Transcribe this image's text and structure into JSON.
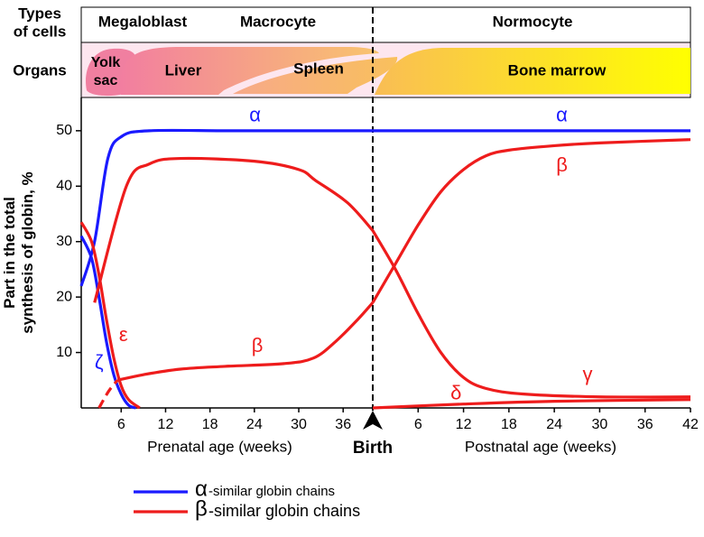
{
  "header": {
    "cells_label": [
      "Types",
      "of cells"
    ],
    "organs_label": "Organs",
    "cells": [
      "Megaloblast",
      "Macrocyte",
      "Normocyte"
    ],
    "yolk_sac": [
      "Yolk",
      "sac"
    ],
    "organs": [
      "Liver",
      "Spleen",
      "Bone marrow"
    ]
  },
  "birth_label": "Birth",
  "legend": [
    {
      "symbol": "α",
      "text": "-similar globin chains",
      "color": "#1a1aff"
    },
    {
      "symbol": "β",
      "text": "-similar globin chains",
      "color": "#ee1c1c"
    }
  ],
  "chart_data": [
    {
      "type": "line",
      "x_label": "Prenatal age (weeks)",
      "y_label": [
        "Part in the total",
        "synthesis of globin, %"
      ],
      "xlim": [
        0.6,
        40
      ],
      "xticks": [
        6,
        12,
        18,
        24,
        30,
        36
      ],
      "ylim": [
        0,
        56
      ],
      "yticks": [
        10,
        20,
        30,
        40,
        50
      ],
      "series": [
        {
          "name": "ζ",
          "color": "#1a1aff",
          "x": [
            0.6,
            2,
            3,
            4,
            5,
            6,
            7,
            8
          ],
          "values": [
            31,
            27,
            20,
            12,
            6,
            2.5,
            0.5,
            0
          ],
          "label_x": 3,
          "label_y": 8
        },
        {
          "name": "α",
          "color": "#1a1aff",
          "x": [
            0.6,
            2.4,
            4.2,
            6.1,
            9.8,
            20,
            30,
            40
          ],
          "values": [
            22,
            30,
            45,
            49,
            50,
            50,
            50,
            50
          ],
          "label_x": 24.1,
          "label_y": 52.6
        },
        {
          "name": "ε",
          "color": "#ee1c1c",
          "x": [
            0.6,
            2,
            3,
            4,
            5,
            6,
            7,
            8.5
          ],
          "values": [
            33.5,
            30,
            24,
            16,
            9,
            4,
            1.5,
            0
          ],
          "label_x": 6.3,
          "label_y": 13
        },
        {
          "name": "γ",
          "color": "#ee1c1c",
          "x": [
            2.4,
            6.7,
            9.8,
            14,
            24,
            30,
            32.3,
            36.6,
            40
          ],
          "values": [
            19,
            40,
            44,
            45,
            44.5,
            43,
            41,
            37,
            32
          ]
        },
        {
          "name": "β",
          "color": "#ee1c1c",
          "x": [
            5.5,
            9,
            14,
            20,
            28,
            32,
            35,
            38,
            40
          ],
          "values": [
            5,
            6,
            7,
            7.5,
            8,
            9,
            12,
            16,
            19
          ],
          "label_x": 24.4,
          "label_y": 11,
          "lead_in": {
            "x": [
              3,
              4.3,
              5.5
            ],
            "values": [
              0,
              3,
              5
            ]
          }
        }
      ]
    },
    {
      "type": "line",
      "x_label": "Postnatal age (weeks)",
      "xlim": [
        0,
        42
      ],
      "xticks": [
        6,
        12,
        18,
        24,
        30,
        36,
        42
      ],
      "ylim": [
        0,
        56
      ],
      "series": [
        {
          "name": "α",
          "color": "#1a1aff",
          "x": [
            0,
            42
          ],
          "values": [
            50,
            50
          ],
          "label_x": 25,
          "label_y": 52.6
        },
        {
          "name": "β",
          "color": "#ee1c1c",
          "x": [
            0,
            3,
            6,
            9,
            12,
            15,
            18,
            24,
            30,
            42
          ],
          "values": [
            19,
            26,
            33,
            39,
            43,
            45.5,
            46.5,
            47.3,
            47.8,
            48.4
          ],
          "label_x": 25,
          "label_y": 43.6
        },
        {
          "name": "γ",
          "color": "#ee1c1c",
          "x": [
            0,
            3,
            6,
            9,
            12,
            15,
            20,
            30,
            42
          ],
          "values": [
            32,
            25,
            17,
            10,
            5.5,
            3.5,
            2.5,
            2,
            2
          ],
          "label_x": 28.4,
          "label_y": 5.8
        },
        {
          "name": "δ",
          "color": "#ee1c1c",
          "x": [
            0,
            12,
            24,
            42
          ],
          "values": [
            0,
            0.7,
            1.2,
            1.5
          ],
          "label_x": 11,
          "label_y": 2.5
        }
      ]
    }
  ]
}
